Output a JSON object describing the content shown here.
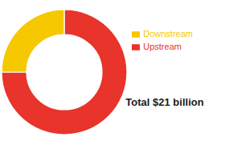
{
  "chart_data": {
    "type": "pie",
    "title": "Total $21 billion",
    "categories": [
      "Upstream",
      "Downstream"
    ],
    "values": [
      75,
      25
    ],
    "colors": [
      "#e8342a",
      "#f5c800"
    ],
    "legend": "right"
  }
}
